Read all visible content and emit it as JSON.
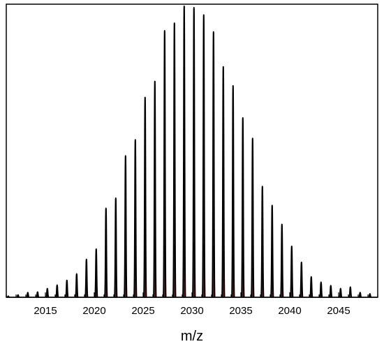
{
  "chart_data": {
    "type": "line",
    "title": "",
    "xlabel": "m/z",
    "ylabel": "",
    "xlim": [
      2011.0,
      2049.0
    ],
    "ylim": [
      0,
      1.0
    ],
    "x_ticks": [
      2015,
      2020,
      2025,
      2030,
      2035,
      2040,
      2045
    ],
    "peak_width": 0.13,
    "grid": false,
    "legend": "none",
    "series": [
      {
        "style": "line",
        "color": "#000000",
        "peaks": [
          {
            "x": 2011.2,
            "y": 0.004
          },
          {
            "x": 2012.2,
            "y": 0.008
          },
          {
            "x": 2013.2,
            "y": 0.016
          },
          {
            "x": 2014.2,
            "y": 0.018
          },
          {
            "x": 2015.2,
            "y": 0.03
          },
          {
            "x": 2016.2,
            "y": 0.042
          },
          {
            "x": 2017.2,
            "y": 0.058
          },
          {
            "x": 2018.2,
            "y": 0.08
          },
          {
            "x": 2019.2,
            "y": 0.13
          },
          {
            "x": 2020.2,
            "y": 0.165
          },
          {
            "x": 2021.2,
            "y": 0.305
          },
          {
            "x": 2022.2,
            "y": 0.34
          },
          {
            "x": 2023.2,
            "y": 0.485
          },
          {
            "x": 2024.2,
            "y": 0.54
          },
          {
            "x": 2025.2,
            "y": 0.685
          },
          {
            "x": 2026.2,
            "y": 0.74
          },
          {
            "x": 2027.2,
            "y": 0.914
          },
          {
            "x": 2028.2,
            "y": 0.94
          },
          {
            "x": 2029.2,
            "y": 0.998
          },
          {
            "x": 2030.2,
            "y": 0.993
          },
          {
            "x": 2031.2,
            "y": 0.968
          },
          {
            "x": 2032.2,
            "y": 0.91
          },
          {
            "x": 2033.2,
            "y": 0.79
          },
          {
            "x": 2034.2,
            "y": 0.725
          },
          {
            "x": 2035.2,
            "y": 0.615
          },
          {
            "x": 2036.2,
            "y": 0.545
          },
          {
            "x": 2037.2,
            "y": 0.38
          },
          {
            "x": 2038.2,
            "y": 0.315
          },
          {
            "x": 2039.2,
            "y": 0.25
          },
          {
            "x": 2040.2,
            "y": 0.175
          },
          {
            "x": 2041.2,
            "y": 0.12
          },
          {
            "x": 2042.2,
            "y": 0.07
          },
          {
            "x": 2043.2,
            "y": 0.052
          },
          {
            "x": 2044.2,
            "y": 0.04
          },
          {
            "x": 2045.2,
            "y": 0.03
          },
          {
            "x": 2046.2,
            "y": 0.035
          },
          {
            "x": 2047.2,
            "y": 0.016
          },
          {
            "x": 2048.2,
            "y": 0.012
          }
        ]
      },
      {
        "style": "filled",
        "color": "#a01818",
        "peaks": [
          {
            "x": 2013.2,
            "y": 0.004
          },
          {
            "x": 2014.2,
            "y": 0.006
          },
          {
            "x": 2015.2,
            "y": 0.01
          },
          {
            "x": 2016.2,
            "y": 0.016
          },
          {
            "x": 2017.2,
            "y": 0.025
          },
          {
            "x": 2018.2,
            "y": 0.04
          },
          {
            "x": 2019.2,
            "y": 0.06
          },
          {
            "x": 2020.2,
            "y": 0.085
          },
          {
            "x": 2021.2,
            "y": 0.115
          },
          {
            "x": 2022.2,
            "y": 0.14
          },
          {
            "x": 2023.2,
            "y": 0.19
          },
          {
            "x": 2024.2,
            "y": 0.22
          },
          {
            "x": 2025.2,
            "y": 0.27
          },
          {
            "x": 2026.2,
            "y": 0.295
          },
          {
            "x": 2027.2,
            "y": 0.35
          },
          {
            "x": 2028.2,
            "y": 0.355
          },
          {
            "x": 2029.2,
            "y": 0.385
          },
          {
            "x": 2030.2,
            "y": 0.37
          },
          {
            "x": 2031.2,
            "y": 0.36
          },
          {
            "x": 2032.2,
            "y": 0.345
          },
          {
            "x": 2033.2,
            "y": 0.31
          },
          {
            "x": 2034.2,
            "y": 0.28
          },
          {
            "x": 2035.2,
            "y": 0.23
          },
          {
            "x": 2036.2,
            "y": 0.2
          },
          {
            "x": 2037.2,
            "y": 0.16
          },
          {
            "x": 2038.2,
            "y": 0.13
          },
          {
            "x": 2039.2,
            "y": 0.095
          },
          {
            "x": 2040.2,
            "y": 0.07
          },
          {
            "x": 2041.2,
            "y": 0.05
          },
          {
            "x": 2042.2,
            "y": 0.035
          },
          {
            "x": 2043.2,
            "y": 0.022
          },
          {
            "x": 2044.2,
            "y": 0.014
          },
          {
            "x": 2045.2,
            "y": 0.008
          },
          {
            "x": 2046.2,
            "y": 0.004
          }
        ]
      }
    ]
  }
}
